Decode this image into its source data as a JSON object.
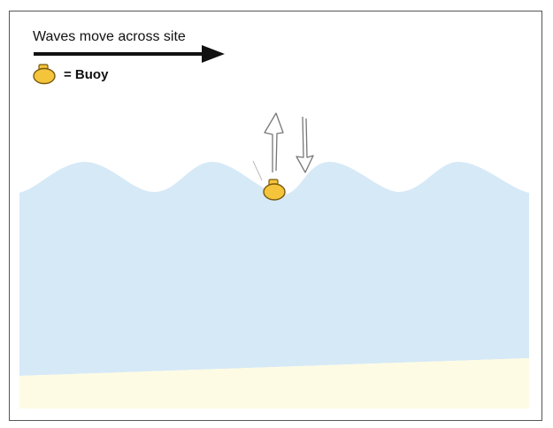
{
  "diagram": {
    "caption": "Waves move across site",
    "legend": {
      "symbol": "buoy-icon",
      "label": "= Buoy"
    },
    "colors": {
      "water": "#d6e9f7",
      "sand": "#fdfbe4",
      "buoy": "#f4c43a",
      "buoy_outline": "#7a5a10",
      "arrow": "#111111",
      "sketch": "#777777",
      "frame": "#555555"
    }
  }
}
